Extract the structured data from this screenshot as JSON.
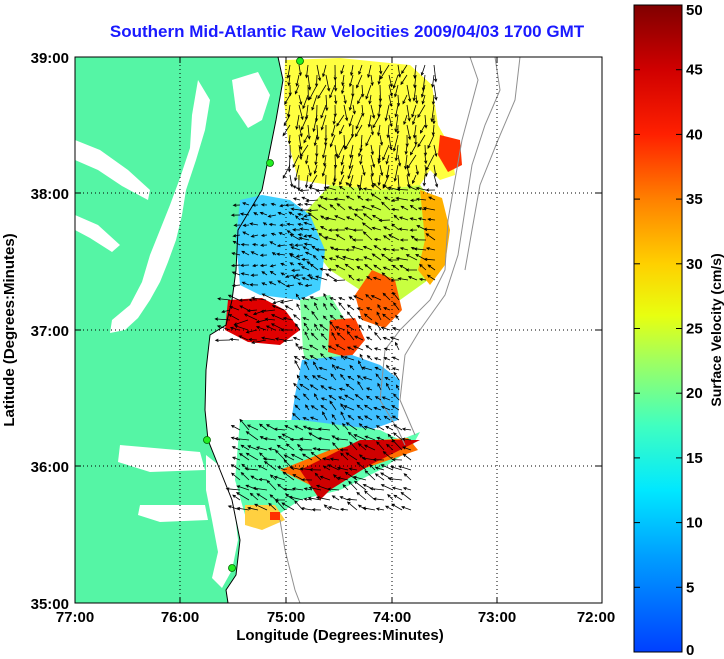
{
  "title": "Southern Mid-Atlantic Raw Velocities 2009/04/03 1700 GMT",
  "xlabel": "Longitude (Degrees:Minutes)",
  "ylabel": "Latitude (Degrees:Minutes)",
  "colorbar_label": "Surface Velocity (cm/s)",
  "x_ticks": [
    "77:00",
    "76:00",
    "75:00",
    "74:00",
    "73:00",
    "72:00"
  ],
  "y_ticks": [
    "39:00",
    "38:00",
    "37:00",
    "36:00",
    "35:00"
  ],
  "colorbar_ticks": [
    "0",
    "5",
    "10",
    "15",
    "20",
    "25",
    "30",
    "35",
    "40",
    "45",
    "50"
  ],
  "extent": {
    "lon": [
      -77,
      -72
    ],
    "lat": [
      35,
      39
    ]
  },
  "colorbar_range": [
    0,
    50
  ],
  "colors": {
    "land": "#55f5a5",
    "title": "#1a1aff",
    "station": "#22ee22"
  }
}
